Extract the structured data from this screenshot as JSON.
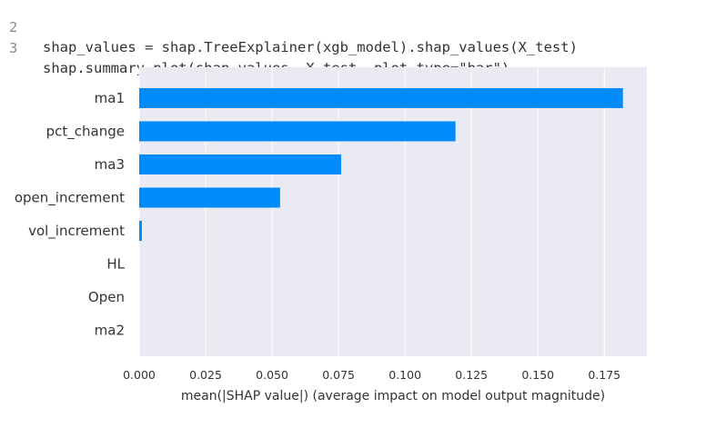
{
  "code": {
    "lines": [
      {
        "number": "2",
        "text": "shap_values = shap.TreeExplainer(xgb_model).shap_values(X_test)"
      },
      {
        "number": "3",
        "text": "shap.summary_plot(shap_values, X_test, plot_type=\"bar\")"
      }
    ]
  },
  "chart_data": {
    "type": "bar",
    "orientation": "horizontal",
    "categories": [
      "ma1",
      "pct_change",
      "ma3",
      "open_increment",
      "vol_increment",
      "HL",
      "Open",
      "ma2"
    ],
    "values": [
      0.182,
      0.119,
      0.076,
      0.053,
      0.001,
      0.0,
      0.0,
      0.0
    ],
    "xlabel": "mean(|SHAP value|) (average impact on model output magnitude)",
    "ylabel": "",
    "xlim": [
      0,
      0.191
    ],
    "xticks": [
      "0.000",
      "0.025",
      "0.050",
      "0.075",
      "0.100",
      "0.125",
      "0.150",
      "0.175"
    ],
    "grid": true,
    "colors": {
      "bar": "#008bfb",
      "plot_background": "#eaeaf2",
      "grid": "#ffffff"
    }
  }
}
